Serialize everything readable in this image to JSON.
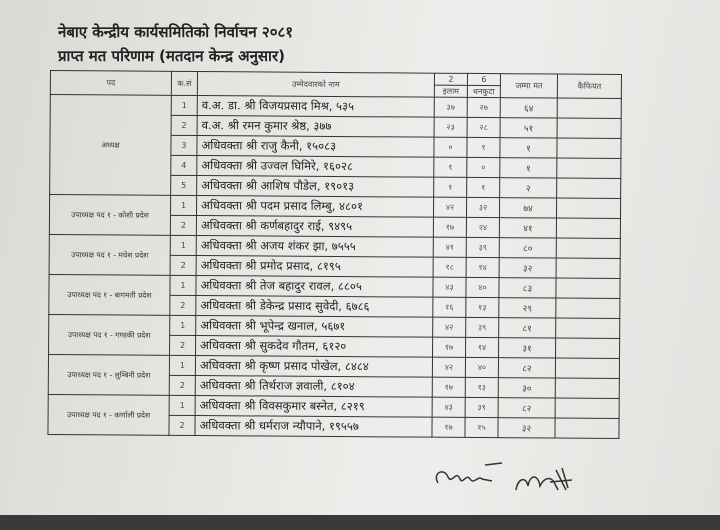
{
  "title": "नेबाए केन्द्रीय कार्यसमितिको निर्वाचन २०८१",
  "subtitle": "प्राप्त मत परिणाम (मतदान केन्द्र अनुसार)",
  "headers": {
    "post": "पद",
    "sn": "क.सं",
    "name": "उम्मेदवारको नाम",
    "c1_no": "2",
    "c1": "इलाम",
    "c2_no": "6",
    "c2": "धनकुटा",
    "total": "जम्मा मत",
    "remarks": "कैफियत"
  },
  "groups": [
    {
      "post": "अध्यक्ष",
      "rows": [
        {
          "sn": "1",
          "name": "व.अ. डा. श्री विजयप्रसाद मिश्र, ५३५",
          "ilam": "३७",
          "dhankuta": "२७",
          "total": "६४"
        },
        {
          "sn": "2",
          "name": "व.अ. श्री रमन कुमार श्रेष्ठ, ३७७",
          "ilam": "२३",
          "dhankuta": "२८",
          "total": "५१"
        },
        {
          "sn": "3",
          "name": "अधिवक्ता श्री राजु कैनी, १५०८३",
          "ilam": "०",
          "dhankuta": "१",
          "total": "१"
        },
        {
          "sn": "4",
          "name": "अधिवक्ता श्री उज्वल घिमिरे, १६०२८",
          "ilam": "१",
          "dhankuta": "०",
          "total": "१"
        },
        {
          "sn": "5",
          "name": "अधिवक्ता श्री आशिष पौडेल, १९०१३",
          "ilam": "१",
          "dhankuta": "१",
          "total": "२"
        }
      ]
    },
    {
      "post": "उपाध्यक्ष पद १ - कोशी प्रदेश",
      "rows": [
        {
          "sn": "1",
          "name": "अधिवक्ता श्री पदम प्रसाद लिम्बु, ४८०१",
          "ilam": "४२",
          "dhankuta": "३२",
          "total": "७४"
        },
        {
          "sn": "2",
          "name": "अधिवक्ता श्री कर्णबहादुर राई, ९४९५",
          "ilam": "१७",
          "dhankuta": "२४",
          "total": "४१"
        }
      ]
    },
    {
      "post": "उपाध्यक्ष पद १ - मधेश प्रदेश",
      "rows": [
        {
          "sn": "1",
          "name": "अधिवक्ता श्री अजय शंकर झा, ७५५५",
          "ilam": "४१",
          "dhankuta": "३९",
          "total": "८०"
        },
        {
          "sn": "2",
          "name": "अधिवक्ता श्री प्रमोद प्रसाद, ८१९५",
          "ilam": "१८",
          "dhankuta": "१४",
          "total": "३२"
        }
      ]
    },
    {
      "post": "उपाध्यक्ष पद १ - बागमती प्रदेश",
      "rows": [
        {
          "sn": "1",
          "name": "अधिवक्ता श्री तेज बहादुर रावल, ८८०५",
          "ilam": "४३",
          "dhankuta": "४०",
          "total": "८३"
        },
        {
          "sn": "2",
          "name": "अधिवक्ता श्री डेकेन्द्र प्रसाद सुवेदी, ६७८६",
          "ilam": "१६",
          "dhankuta": "१३",
          "total": "२९"
        }
      ]
    },
    {
      "post": "उपाध्यक्ष पद १ - गण्डकी प्रदेश",
      "rows": [
        {
          "sn": "1",
          "name": "अधिवक्ता श्री भूपेन्द्र खनाल, ५६७१",
          "ilam": "४२",
          "dhankuta": "३९",
          "total": "८१"
        },
        {
          "sn": "2",
          "name": "अधिवक्ता श्री सुकदेव गौतम, ६१२०",
          "ilam": "१७",
          "dhankuta": "१४",
          "total": "३१"
        }
      ]
    },
    {
      "post": "उपाध्यक्ष पद १ - लुम्बिनी प्रदेश",
      "rows": [
        {
          "sn": "1",
          "name": "अधिवक्ता श्री कृष्ण प्रसाद पोखेल, ८४८४",
          "ilam": "४२",
          "dhankuta": "४०",
          "total": "८२"
        },
        {
          "sn": "2",
          "name": "अधिवक्ता श्री तिर्थराज ज्ञवाली, ८१०४",
          "ilam": "१७",
          "dhankuta": "१३",
          "total": "३०"
        }
      ]
    },
    {
      "post": "उपाध्यक्ष पद १ - कर्णाली प्रदेश",
      "rows": [
        {
          "sn": "1",
          "name": "अधिवक्ता श्री विवसकुमार बस्नेत, ८२१९",
          "ilam": "४३",
          "dhankuta": "३९",
          "total": "८२"
        },
        {
          "sn": "2",
          "name": "अधिवक्ता श्री धर्मराज न्यौपाने, १९५५७",
          "ilam": "१७",
          "dhankuta": "१५",
          "total": "३२"
        }
      ]
    }
  ]
}
